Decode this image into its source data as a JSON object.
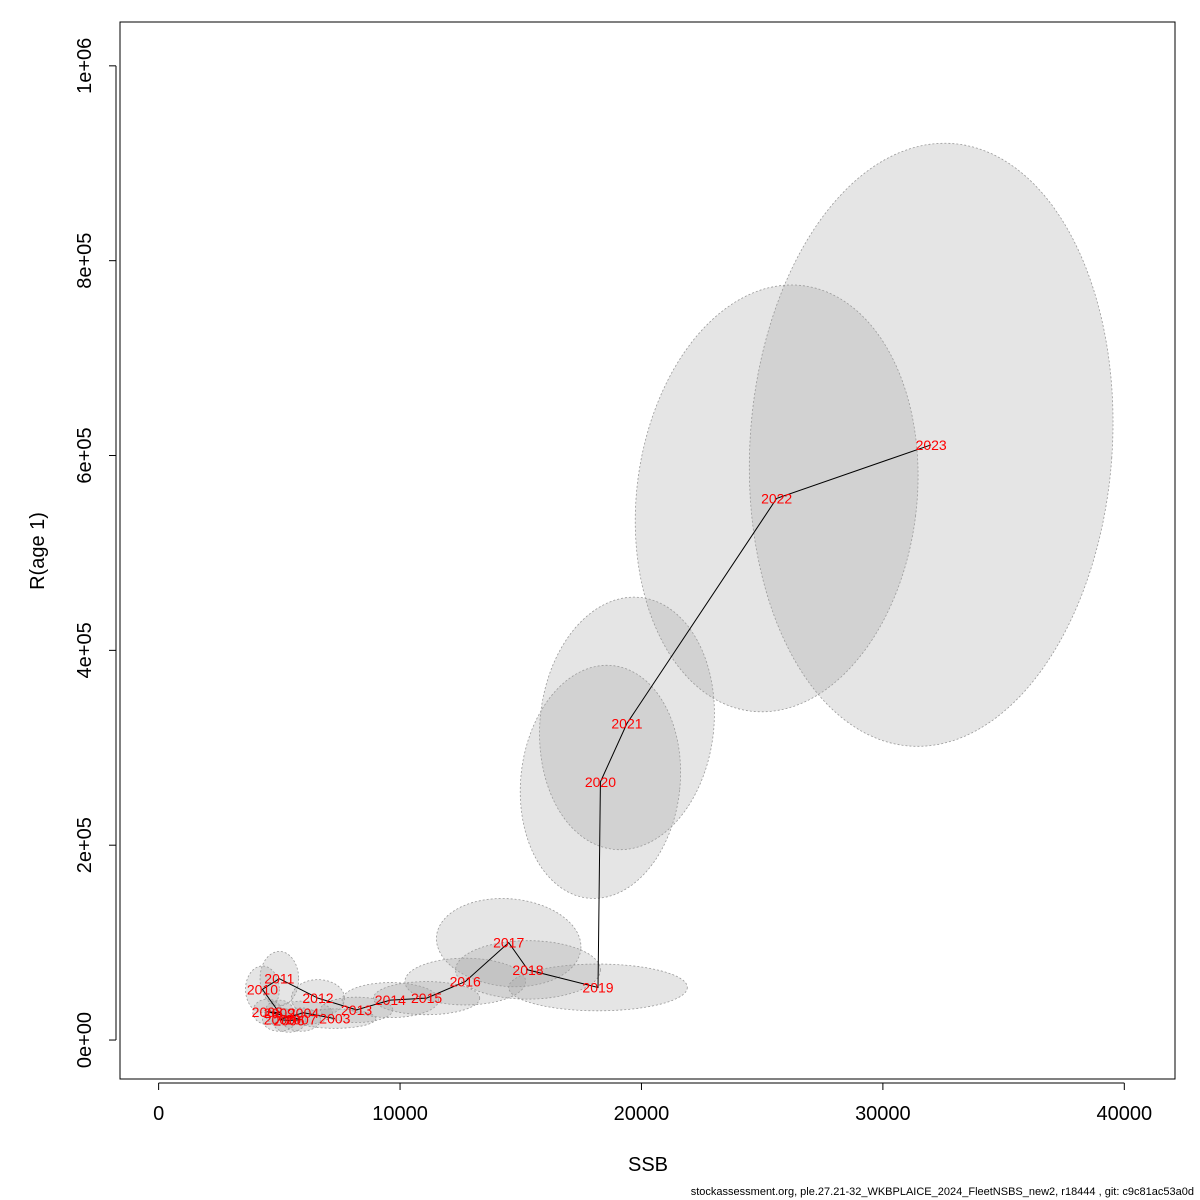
{
  "chart_data": {
    "type": "scatter",
    "title": "",
    "xlabel": "SSB",
    "ylabel": "R(age 1)",
    "xlim": [
      -1600,
      42100
    ],
    "ylim": [
      -40000,
      1045000
    ],
    "xticks": [
      0,
      10000,
      20000,
      30000,
      40000
    ],
    "xtick_labels": [
      "0",
      "10000",
      "20000",
      "30000",
      "40000"
    ],
    "yticks": [
      0,
      200000,
      400000,
      600000,
      800000,
      1000000
    ],
    "ytick_labels": [
      "0e+00",
      "2e+05",
      "4e+05",
      "6e+05",
      "8e+05",
      "1e+06"
    ],
    "grid": false,
    "legend": "none",
    "points": [
      {
        "year": "2003",
        "ssb": 7300,
        "rec": 22000,
        "ell": {
          "rx": 1700,
          "ry": 10000,
          "rot": 0
        }
      },
      {
        "year": "2004",
        "ssb": 6000,
        "rec": 28000,
        "ell": {
          "rx": 1200,
          "ry": 12000,
          "rot": 0
        }
      },
      {
        "year": "2005",
        "ssb": 5000,
        "rec": 21000,
        "ell": {
          "rx": 700,
          "ry": 12000,
          "rot": 0
        }
      },
      {
        "year": "2006",
        "ssb": 5400,
        "rec": 20000,
        "ell": {
          "rx": 700,
          "ry": 12000,
          "rot": 0
        }
      },
      {
        "year": "2007",
        "ssb": 5900,
        "rec": 21000,
        "ell": {
          "rx": 800,
          "ry": 12000,
          "rot": 0
        }
      },
      {
        "year": "2008",
        "ssb": 4500,
        "rec": 29000,
        "ell": {
          "rx": 600,
          "ry": 13000,
          "rot": 0
        }
      },
      {
        "year": "2009",
        "ssb": 5000,
        "rec": 28000,
        "ell": {
          "rx": 600,
          "ry": 13000,
          "rot": 0
        }
      },
      {
        "year": "2010",
        "ssb": 4300,
        "rec": 52000,
        "ell": {
          "rx": 700,
          "ry": 24000,
          "rot": 0
        }
      },
      {
        "year": "2011",
        "ssb": 5000,
        "rec": 63000,
        "ell": {
          "rx": 800,
          "ry": 28000,
          "rot": 0
        }
      },
      {
        "year": "2012",
        "ssb": 6600,
        "rec": 43000,
        "ell": {
          "rx": 1100,
          "ry": 19000,
          "rot": 0
        }
      },
      {
        "year": "2013",
        "ssb": 8200,
        "rec": 31000,
        "ell": {
          "rx": 1500,
          "ry": 13000,
          "rot": 0
        }
      },
      {
        "year": "2014",
        "ssb": 9600,
        "rec": 41000,
        "ell": {
          "rx": 2000,
          "ry": 18000,
          "rot": 0
        }
      },
      {
        "year": "2015",
        "ssb": 11100,
        "rec": 43000,
        "ell": {
          "rx": 2200,
          "ry": 17000,
          "rot": 0
        }
      },
      {
        "year": "2016",
        "ssb": 12700,
        "rec": 60000,
        "ell": {
          "rx": 2500,
          "ry": 24000,
          "rot": 0
        }
      },
      {
        "year": "2017",
        "ssb": 14500,
        "rec": 100000,
        "ell": {
          "rx": 3000,
          "ry": 45000,
          "rot": 5
        }
      },
      {
        "year": "2018",
        "ssb": 15300,
        "rec": 72000,
        "ell": {
          "rx": 3000,
          "ry": 30000,
          "rot": 0
        }
      },
      {
        "year": "2019",
        "ssb": 18200,
        "rec": 54000,
        "ell": {
          "rx": 3700,
          "ry": 24000,
          "rot": 0
        }
      },
      {
        "year": "2020",
        "ssb": 18300,
        "rec": 265000,
        "ell": {
          "rx": 3300,
          "ry": 120000,
          "rot": 6
        }
      },
      {
        "year": "2021",
        "ssb": 19400,
        "rec": 325000,
        "ell": {
          "rx": 3600,
          "ry": 130000,
          "rot": 6
        }
      },
      {
        "year": "2022",
        "ssb": 25600,
        "rec": 556000,
        "ell": {
          "rx": 5800,
          "ry": 220000,
          "rot": 7
        }
      },
      {
        "year": "2023",
        "ssb": 32000,
        "rec": 611000,
        "ell": {
          "rx": 7500,
          "ry": 310000,
          "rot": 4
        }
      }
    ]
  },
  "footer": "stockassessment.org, ple.27.21-32_WKBPLAICE_2024_FleetNSBS_new2, r18444 , git: c9c81ac53a0d"
}
